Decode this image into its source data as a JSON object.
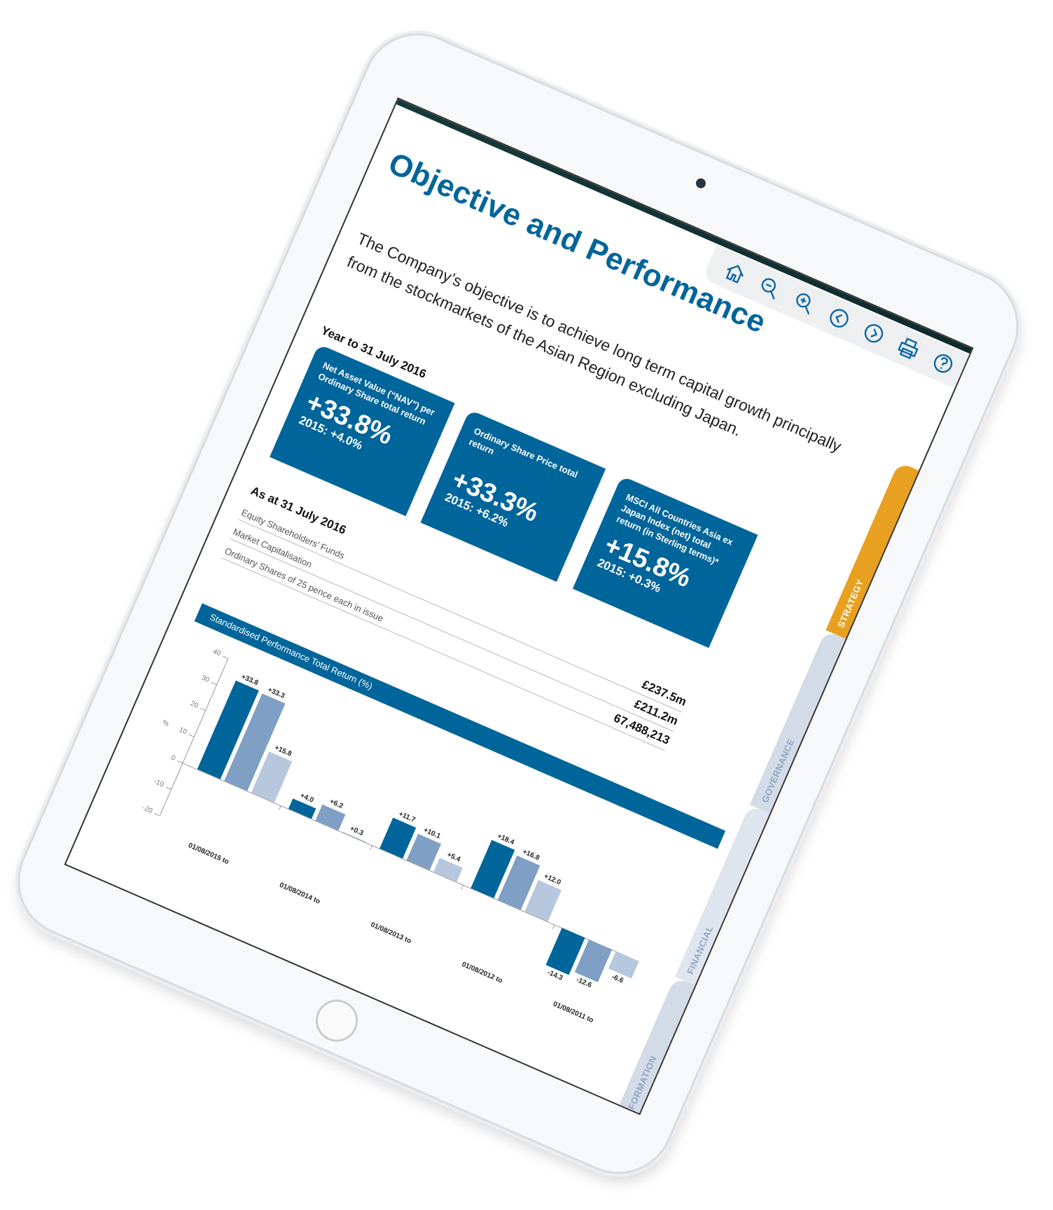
{
  "toolbar": {
    "icons": [
      "home-icon",
      "zoom-out-icon",
      "zoom-in-icon",
      "previous-page-icon",
      "next-page-icon",
      "print-icon",
      "help-icon"
    ]
  },
  "page": {
    "title": "Objective and Performance",
    "intro": "The Company’s objective is to achieve long term capital growth principally from the stockmarkets of the Asian Region excluding Japan.",
    "year_heading": "Year to 31 July 2016",
    "kpis": [
      {
        "label": "Net Asset Value (“NAV”) per Ordinary Share total return",
        "value": "+33.8%",
        "prior": "2015: +4.0%"
      },
      {
        "label": "Ordinary Share Price total return",
        "value": "+33.3%",
        "prior": "2015: +6.2%"
      },
      {
        "label": "MSCI All Countries Asia ex Japan Index (net) total return (in Sterling terms)*",
        "value": "+15.8%",
        "prior": "2015: +0.3%"
      }
    ],
    "as_at_heading": "As at 31 July 2016",
    "rows": [
      {
        "label": "Equity Shareholders’ Funds",
        "value": "£237.5m"
      },
      {
        "label": "Market Capitalisation",
        "value": "£211.2m"
      },
      {
        "label": "Ordinary Shares of 25 pence each in issue",
        "value": "67,488,213"
      }
    ]
  },
  "side_tabs": [
    {
      "label": "STRATEGY",
      "color": "#e8a020",
      "text_color": "#ffffff"
    },
    {
      "label": "GOVERNANCE",
      "color": "#d3dbe6",
      "text_color": "#8fa6c4"
    },
    {
      "label": "FINANCIAL",
      "color": "#dfe5ee",
      "text_color": "#8fa6c4"
    },
    {
      "label": "FORMATION",
      "color": "#d3dbe6",
      "text_color": "#8fa6c4"
    }
  ],
  "colors": {
    "brand": "#00659a",
    "series": [
      "#00659a",
      "#7f9fc4",
      "#b7c8de"
    ]
  },
  "chart_data": {
    "type": "bar",
    "title": "Standardised Performance Total Return (%)",
    "ylabel": "%",
    "ylim": [
      -20,
      40
    ],
    "yticks": [
      40,
      30,
      20,
      10,
      0,
      -10,
      -20
    ],
    "categories": [
      "01/08/2015 to",
      "01/08/2014 to",
      "01/08/2013 to",
      "01/08/2012 to",
      "01/08/2011 to"
    ],
    "series": [
      {
        "values": [
          33.8,
          4.0,
          11.7,
          18.4,
          -14.3
        ],
        "labels": [
          "+33.8",
          "+4.0",
          "+11.7",
          "+18.4",
          "-14.3"
        ]
      },
      {
        "values": [
          33.3,
          6.2,
          10.1,
          16.8,
          -12.6
        ],
        "labels": [
          "+33.3",
          "+6.2",
          "+10.1",
          "+16.8",
          "-12.6"
        ]
      },
      {
        "values": [
          15.8,
          0.3,
          5.4,
          12.0,
          -6.6
        ],
        "labels": [
          "+15.8",
          "+0.3",
          "+5.4",
          "+12.0",
          "-6.6"
        ]
      }
    ],
    "grid": false,
    "legend": "none"
  }
}
